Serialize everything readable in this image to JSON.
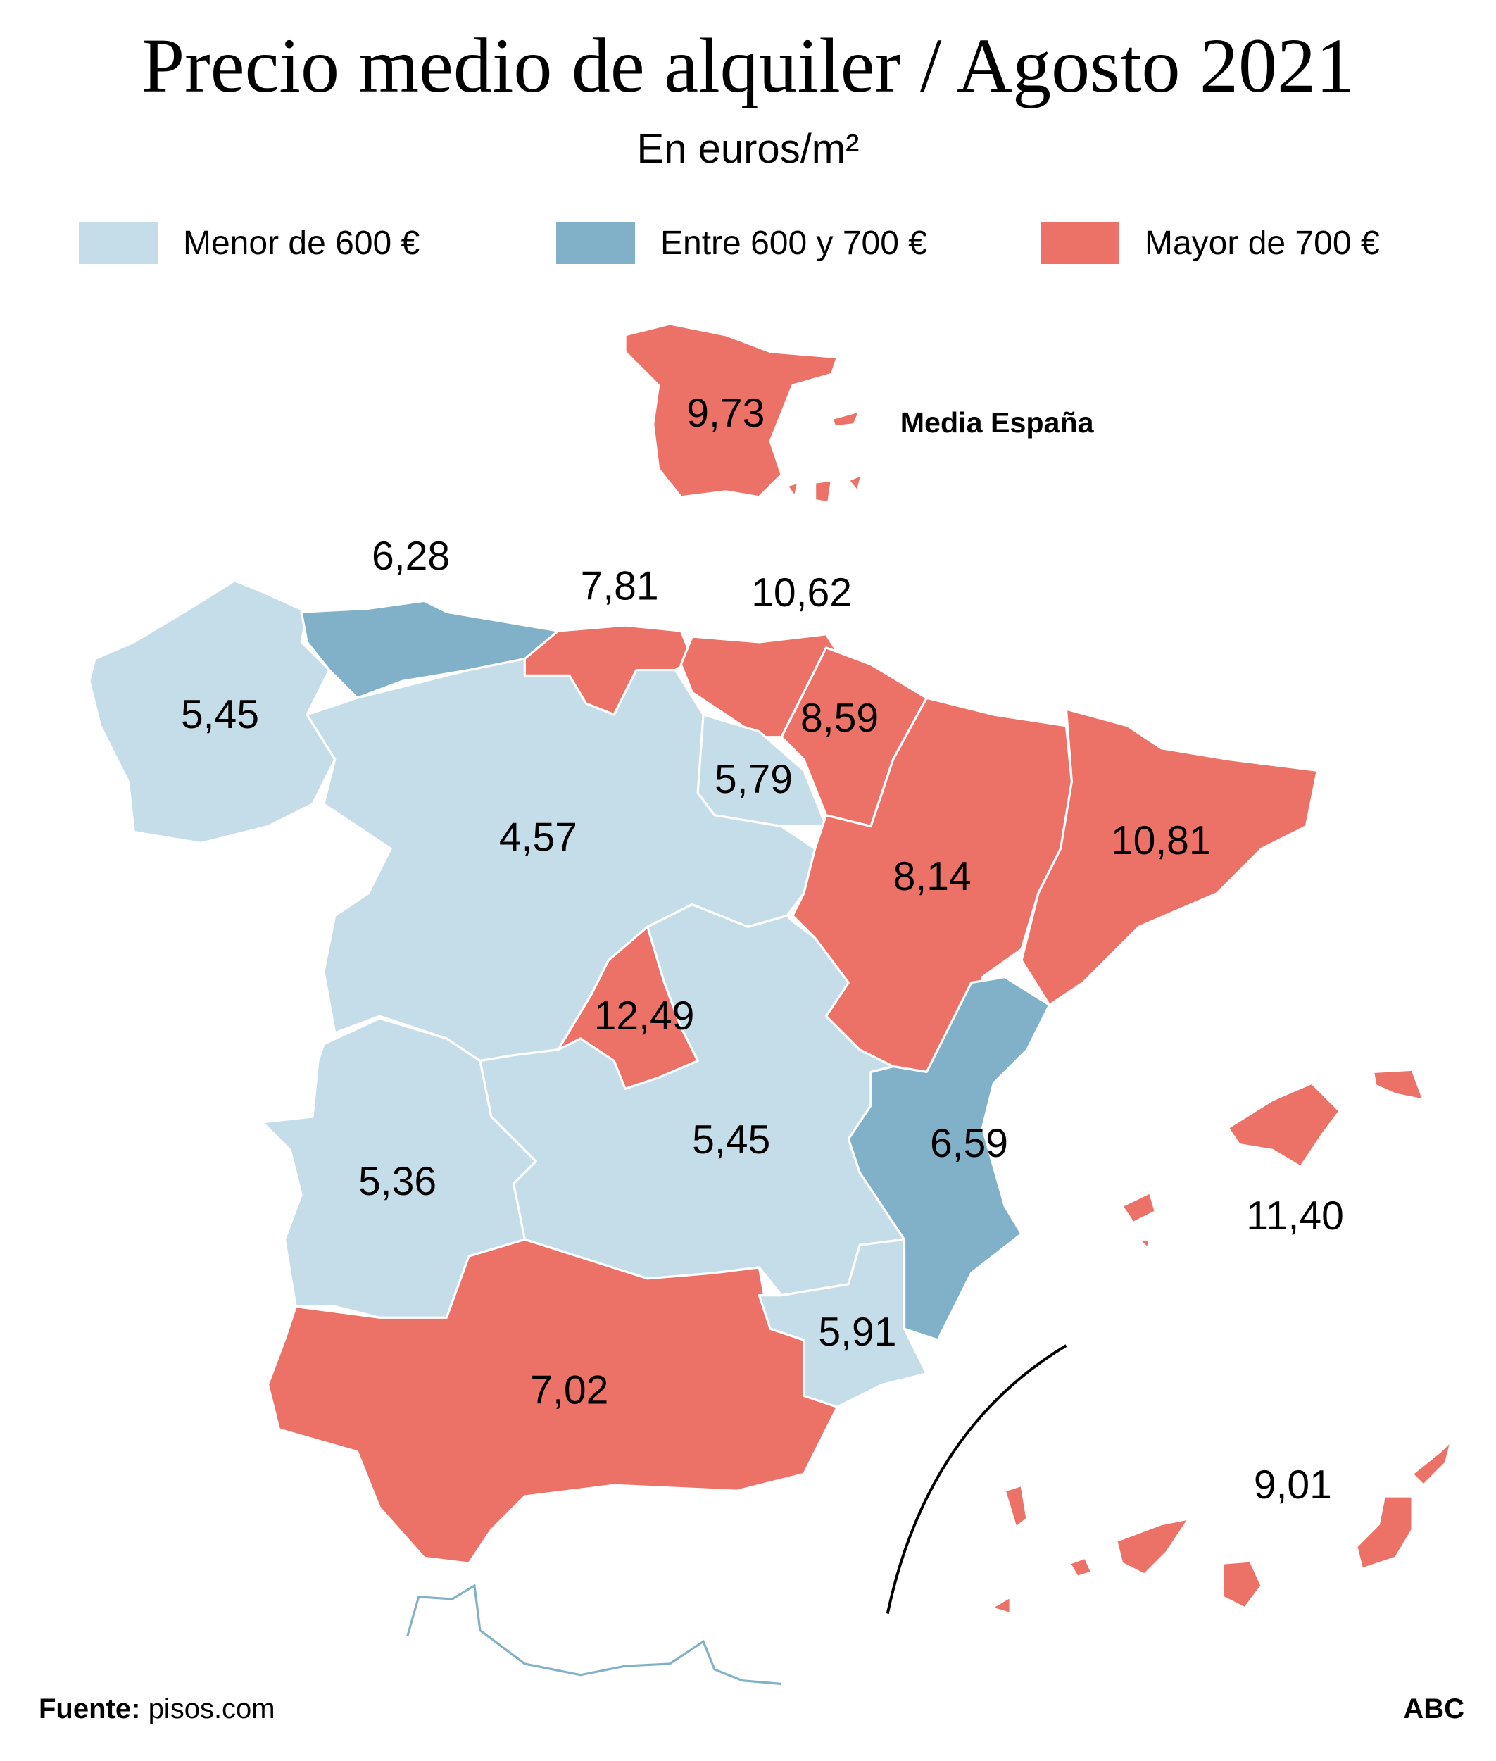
{
  "title": "Precio medio de alquiler / Agosto 2021",
  "subtitle": "En euros/m²",
  "legend": [
    {
      "label": "Menor de 600 €",
      "color": "#c5dde8"
    },
    {
      "label": "Entre 600 y 700 €",
      "color": "#80b1c8"
    },
    {
      "label": "Mayor de 700 €",
      "color": "#ec7166"
    }
  ],
  "national": {
    "value": "9,73",
    "label": "Media España",
    "category": "Mayor de 700 €"
  },
  "regions": [
    {
      "region": "Galicia",
      "value": "5,45",
      "category": "Menor de 600 €"
    },
    {
      "region": "Asturias",
      "value": "6,28",
      "category": "Entre 600 y 700 €"
    },
    {
      "region": "Cantabria",
      "value": "7,81",
      "category": "Mayor de 700 €"
    },
    {
      "region": "País Vasco",
      "value": "10,62",
      "category": "Mayor de 700 €"
    },
    {
      "region": "Navarra",
      "value": "8,59",
      "category": "Mayor de 700 €"
    },
    {
      "region": "La Rioja",
      "value": "5,79",
      "category": "Menor de 600 €"
    },
    {
      "region": "Castilla y León",
      "value": "4,57",
      "category": "Menor de 600 €"
    },
    {
      "region": "Aragón",
      "value": "8,14",
      "category": "Mayor de 700 €"
    },
    {
      "region": "Cataluña",
      "value": "10,81",
      "category": "Mayor de 700 €"
    },
    {
      "region": "Madrid",
      "value": "12,49",
      "category": "Mayor de 700 €"
    },
    {
      "region": "Castilla-La Mancha",
      "value": "5,45",
      "category": "Menor de 600 €"
    },
    {
      "region": "Comunidad Valenciana",
      "value": "6,59",
      "category": "Entre 600 y 700 €"
    },
    {
      "region": "Extremadura",
      "value": "5,36",
      "category": "Menor de 600 €"
    },
    {
      "region": "Murcia",
      "value": "5,91",
      "category": "Menor de 600 €"
    },
    {
      "region": "Andalucía",
      "value": "7,02",
      "category": "Mayor de 700 €"
    },
    {
      "region": "Baleares",
      "value": "11,40",
      "category": "Mayor de 700 €"
    },
    {
      "region": "Canarias",
      "value": "9,01",
      "category": "Mayor de 700 €"
    }
  ],
  "source_label": "Fuente:",
  "source": "pisos.com",
  "credit": "ABC"
}
